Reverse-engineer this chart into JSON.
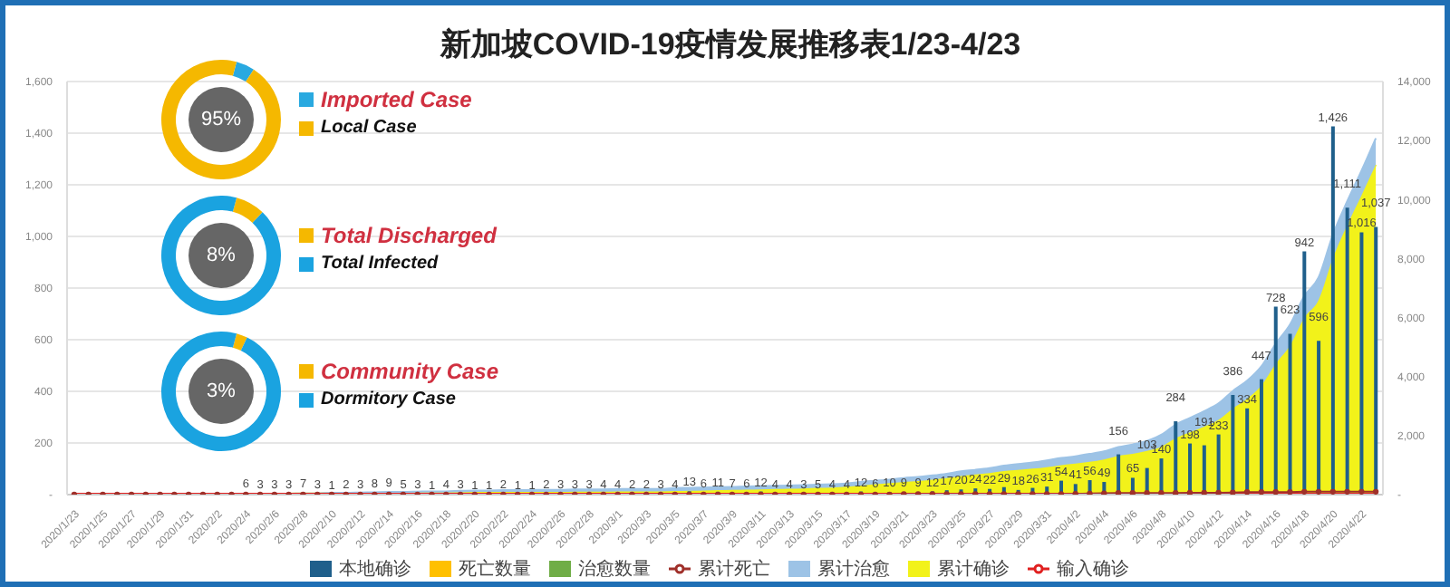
{
  "chart_data": [
    {
      "type": "bar",
      "title": "新加坡COVID-19疫情发展推移表1/23-4/23",
      "categories": [
        "2020/1/23",
        null,
        "2020/1/25",
        null,
        "2020/1/27",
        null,
        "2020/1/29",
        null,
        "2020/1/31",
        null,
        "2020/2/2",
        null,
        "2020/2/4",
        null,
        "2020/2/6",
        null,
        "2020/2/8",
        null,
        "2020/2/10",
        null,
        "2020/2/12",
        null,
        "2020/2/14",
        null,
        "2020/2/16",
        null,
        "2020/2/18",
        null,
        "2020/2/20",
        null,
        "2020/2/22",
        null,
        "2020/2/24",
        null,
        "2020/2/26",
        null,
        "2020/2/28",
        null,
        "2020/3/1",
        null,
        "2020/3/3",
        null,
        "2020/3/5",
        null,
        "2020/3/7",
        null,
        "2020/3/9",
        null,
        "2020/3/11",
        null,
        "2020/3/13",
        null,
        "2020/3/15",
        null,
        "2020/3/17",
        null,
        "2020/3/19",
        null,
        "2020/3/21",
        null,
        "2020/3/23",
        null,
        "2020/3/25",
        null,
        "2020/3/27",
        null,
        "2020/3/29",
        null,
        "2020/3/31",
        null,
        "2020/4/2",
        null,
        "2020/4/4",
        null,
        "2020/4/6",
        null,
        "2020/4/8",
        null,
        "2020/4/10",
        null,
        "2020/4/12",
        null,
        "2020/4/14",
        null,
        "2020/4/16",
        null,
        "2020/4/18",
        null,
        "2020/4/20",
        null,
        "2020/4/22",
        null
      ],
      "series": [
        {
          "name": "累计确诊",
          "type": "area",
          "axis": "y2",
          "color": "#f2f21a",
          "values": [
            0,
            0,
            0,
            0,
            10,
            10,
            10,
            10,
            10,
            20,
            20,
            20,
            20,
            30,
            30,
            30,
            40,
            40,
            50,
            50,
            50,
            60,
            70,
            70,
            80,
            80,
            80,
            80,
            90,
            90,
            90,
            90,
            90,
            90,
            90,
            100,
            100,
            100,
            110,
            110,
            110,
            110,
            120,
            130,
            140,
            150,
            160,
            170,
            180,
            190,
            200,
            210,
            230,
            240,
            270,
            310,
            350,
            390,
            430,
            460,
            510,
            560,
            630,
            680,
            730,
            800,
            840,
            880,
            930,
            1000,
            1050,
            1110,
            1190,
            1310,
            1380,
            1480,
            1620,
            1910,
            2110,
            2300,
            2530,
            2920,
            3250,
            3700,
            4430,
            5050,
            5990,
            6590,
            8010,
            9130,
            10140,
            11180
          ]
        },
        {
          "name": "累计治愈",
          "type": "area",
          "axis": "y2",
          "color": "#9dc3e6",
          "values": [
            0,
            0,
            0,
            0,
            0,
            0,
            0,
            0,
            0,
            0,
            0,
            0,
            0,
            0,
            0,
            0,
            0,
            0,
            10,
            10,
            20,
            20,
            20,
            20,
            20,
            30,
            30,
            50,
            50,
            50,
            60,
            60,
            70,
            70,
            70,
            80,
            80,
            80,
            80,
            80,
            80,
            80,
            100,
            100,
            100,
            100,
            100,
            110,
            110,
            110,
            110,
            110,
            110,
            110,
            110,
            120,
            120,
            120,
            130,
            140,
            140,
            150,
            160,
            160,
            170,
            180,
            200,
            210,
            230,
            240,
            250,
            270,
            280,
            300,
            320,
            340,
            410,
            460,
            490,
            530,
            560,
            590,
            610,
            650,
            680,
            710,
            740,
            770,
            800,
            810,
            840,
            900
          ]
        },
        {
          "name": "累计死亡",
          "type": "line",
          "color": "#a0302a",
          "marker": "circle",
          "values": [
            0,
            0,
            0,
            0,
            0,
            0,
            0,
            0,
            0,
            0,
            0,
            0,
            0,
            0,
            0,
            0,
            0,
            0,
            0,
            0,
            0,
            0,
            0,
            0,
            0,
            0,
            0,
            0,
            0,
            0,
            0,
            0,
            0,
            0,
            0,
            0,
            0,
            0,
            0,
            0,
            0,
            0,
            0,
            0,
            0,
            0,
            0,
            0,
            0,
            0,
            0,
            0,
            0,
            0,
            0,
            0,
            0,
            0,
            2,
            2,
            2,
            2,
            2,
            2,
            2,
            2,
            2,
            2,
            2,
            2,
            3,
            4,
            5,
            6,
            6,
            6,
            6,
            6,
            7,
            7,
            7,
            8,
            10,
            10,
            10,
            10,
            11,
            11,
            11,
            11,
            11,
            11
          ]
        },
        {
          "name": "输入确诊",
          "type": "line",
          "color": "#e02020",
          "marker": "none",
          "values": [
            0,
            0,
            0,
            0,
            0,
            0,
            0,
            0,
            0,
            0,
            0,
            0,
            0,
            0,
            0,
            0,
            0,
            0,
            0,
            0,
            0,
            0,
            0,
            0,
            0,
            0,
            0,
            0,
            0,
            0,
            0,
            0,
            0,
            0,
            0,
            0,
            0,
            0,
            0,
            0,
            0,
            0,
            0,
            0,
            0,
            0,
            0,
            0,
            0,
            0,
            0,
            0,
            0,
            0,
            0,
            0,
            0,
            0,
            0,
            0,
            0,
            0,
            0,
            0,
            0,
            0,
            0,
            0,
            0,
            0,
            0,
            0,
            0,
            0,
            0,
            0,
            0,
            0,
            0,
            0,
            0,
            0,
            0,
            0,
            0,
            0,
            0,
            0,
            0,
            0,
            0,
            0
          ]
        },
        {
          "name": "本地确诊",
          "type": "bar",
          "color": "#1f5f8b",
          "values": [
            null,
            null,
            null,
            null,
            null,
            null,
            null,
            null,
            null,
            null,
            null,
            null,
            6,
            3,
            3,
            3,
            7,
            3,
            1,
            2,
            3,
            8,
            9,
            5,
            3,
            1,
            4,
            3,
            1,
            1,
            2,
            1,
            1,
            2,
            3,
            3,
            3,
            4,
            4,
            2,
            2,
            3,
            4,
            13,
            6,
            11,
            7,
            6,
            12,
            4,
            4,
            3,
            5,
            4,
            4,
            12,
            6,
            10,
            9,
            9,
            12,
            17,
            20,
            24,
            22,
            29,
            18,
            26,
            31,
            54,
            41,
            56,
            49,
            156,
            65,
            103,
            140,
            284,
            198,
            191,
            233,
            386,
            334,
            447,
            728,
            623,
            942,
            596,
            1426,
            1111,
            1016,
            1037
          ],
          "value_labels": [
            null,
            null,
            null,
            null,
            null,
            null,
            null,
            null,
            null,
            null,
            null,
            null,
            "6",
            "3",
            "3",
            "3",
            "7",
            "3",
            "1",
            "2",
            "3",
            "8",
            "9",
            "5",
            "3",
            "1",
            "4",
            "3",
            "1",
            "1",
            "2",
            "1",
            "1",
            "2",
            "3",
            "3",
            "3",
            "4",
            "4",
            "2",
            "2",
            "3",
            "4",
            "13",
            "6",
            "11",
            "7",
            "6",
            "12",
            "4",
            "4",
            "3",
            "5",
            "4",
            "4",
            "12",
            "6",
            "10",
            "9",
            "9",
            "12",
            "17",
            "20",
            "24",
            "22",
            "29",
            "18",
            "26",
            "31",
            "54",
            "41",
            "56",
            "49",
            "156",
            "65",
            "103",
            "140",
            "284",
            "198",
            "191",
            "233",
            "386",
            "334",
            "447",
            "728",
            "623",
            "942",
            "596",
            "1,426",
            "1,111",
            "1,016",
            "1,037"
          ]
        },
        {
          "name": "死亡数量",
          "type": "bar",
          "color": "#ffc000",
          "values": [
            0,
            0,
            0,
            0,
            0,
            0,
            0,
            0,
            0,
            0,
            0,
            0,
            0,
            0,
            0,
            0,
            0,
            0,
            0,
            0,
            0,
            0,
            0,
            0,
            0,
            0,
            0,
            0,
            0,
            0,
            0,
            0,
            0,
            0,
            0,
            0,
            0,
            0,
            0,
            0,
            0,
            0,
            0,
            0,
            0,
            0,
            0,
            0,
            0,
            0,
            0,
            0,
            0,
            0,
            0,
            0,
            0,
            0,
            0,
            0,
            0,
            0,
            0,
            0,
            0,
            0,
            0,
            0,
            0,
            0,
            0,
            0,
            0,
            0,
            0,
            0,
            0,
            0,
            0,
            0,
            0,
            0,
            0,
            0,
            0,
            0,
            0,
            0,
            0,
            0,
            0,
            0
          ]
        },
        {
          "name": "治愈数量",
          "type": "bar",
          "color": "#70ad47",
          "values": [
            0,
            0,
            0,
            0,
            0,
            0,
            0,
            0,
            0,
            0,
            0,
            0,
            0,
            0,
            0,
            0,
            0,
            0,
            0,
            0,
            0,
            0,
            0,
            0,
            0,
            0,
            0,
            0,
            0,
            0,
            0,
            0,
            0,
            0,
            0,
            0,
            0,
            0,
            0,
            0,
            0,
            0,
            0,
            0,
            0,
            0,
            0,
            0,
            0,
            0,
            0,
            0,
            0,
            0,
            0,
            0,
            0,
            0,
            0,
            0,
            0,
            0,
            0,
            0,
            0,
            0,
            0,
            0,
            0,
            0,
            0,
            0,
            0,
            0,
            0,
            0,
            0,
            0,
            0,
            0,
            0,
            0,
            0,
            0,
            0,
            0,
            0,
            0,
            0,
            0,
            0,
            0
          ]
        }
      ],
      "stacked": true,
      "ylim": [
        0,
        1600
      ],
      "yticks": [
        {
          "value": 0,
          "label": "-"
        },
        200,
        400,
        600,
        800,
        {
          "value": 1000,
          "label": "1,000"
        },
        {
          "value": 1200,
          "label": "1,200"
        },
        {
          "value": 1400,
          "label": "1,400"
        },
        {
          "value": 1600,
          "label": "1,600"
        }
      ],
      "y2lim": [
        0,
        14000
      ],
      "y2ticks": [
        {
          "value": 0,
          "label": "-"
        },
        {
          "value": 2000,
          "label": "2,000"
        },
        {
          "value": 4000,
          "label": "4,000"
        },
        {
          "value": 6000,
          "label": "6,000"
        },
        {
          "value": 8000,
          "label": "8,000"
        },
        {
          "value": 10000,
          "label": "10,000"
        },
        {
          "value": 12000,
          "label": "12,000"
        },
        {
          "value": 14000,
          "label": "14,000"
        }
      ],
      "grid": "y",
      "legend": "bottom"
    },
    {
      "type": "donut",
      "categories": [
        "Imported Case",
        "Local Case"
      ],
      "values": [
        5,
        95
      ],
      "colors": [
        "#29a9e0",
        "#f5b800"
      ],
      "annotations": [
        "95%"
      ],
      "legend": "right"
    },
    {
      "type": "donut",
      "categories": [
        "Total Discharged",
        "Total Infected"
      ],
      "values": [
        8,
        92
      ],
      "colors": [
        "#f5b800",
        "#1aa3e0"
      ],
      "annotations": [
        "8%"
      ],
      "legend": "right"
    },
    {
      "type": "donut",
      "categories": [
        "Community Case",
        "Dormitory Case"
      ],
      "values": [
        3,
        97
      ],
      "colors": [
        "#f5b800",
        "#1aa3e0"
      ],
      "annotations": [
        "3%"
      ],
      "legend": "right"
    }
  ]
}
